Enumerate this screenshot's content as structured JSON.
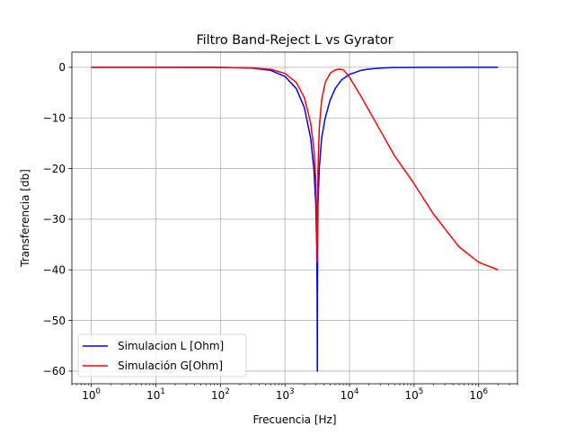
{
  "chart_data": {
    "type": "line",
    "title": "Filtro Band-Reject L vs Gyrator",
    "xlabel": "Frecuencia [Hz]",
    "ylabel": "Transferencia [db]",
    "xscale": "log",
    "xlim": [
      0.5,
      4000000
    ],
    "ylim": [
      -62.5,
      3
    ],
    "grid": true,
    "legend_position": "lower-left",
    "x_ticks": [
      {
        "value": 1,
        "base": "10",
        "exp": "0"
      },
      {
        "value": 10,
        "base": "10",
        "exp": "1"
      },
      {
        "value": 100,
        "base": "10",
        "exp": "2"
      },
      {
        "value": 1000,
        "base": "10",
        "exp": "3"
      },
      {
        "value": 10000,
        "base": "10",
        "exp": "4"
      },
      {
        "value": 100000,
        "base": "10",
        "exp": "5"
      },
      {
        "value": 1000000,
        "base": "10",
        "exp": "6"
      }
    ],
    "y_ticks": [
      {
        "value": 0,
        "label": "0"
      },
      {
        "value": -10,
        "label": "−10"
      },
      {
        "value": -20,
        "label": "−20"
      },
      {
        "value": -30,
        "label": "−30"
      },
      {
        "value": -40,
        "label": "−40"
      },
      {
        "value": -50,
        "label": "−50"
      },
      {
        "value": -60,
        "label": "−60"
      }
    ],
    "series": [
      {
        "name": "Simulacion L [Ohm]",
        "color": "#0000ff",
        "x": [
          1,
          10,
          100,
          300,
          600,
          1000,
          1500,
          2000,
          2500,
          2800,
          3000,
          3100,
          3150,
          3170,
          3180,
          3190,
          3210,
          3250,
          3400,
          3700,
          4200,
          5000,
          6000,
          7500,
          10000,
          15000,
          20000,
          30000,
          50000,
          100000,
          1000000,
          2000000
        ],
        "y": [
          0,
          0,
          -0.02,
          -0.15,
          -0.6,
          -1.8,
          -4.2,
          -8.0,
          -14.0,
          -20.0,
          -27.0,
          -35.0,
          -45.0,
          -60.0,
          -60.0,
          -45.0,
          -35.0,
          -27.0,
          -20.0,
          -14.0,
          -10.0,
          -6.5,
          -4.2,
          -2.5,
          -1.4,
          -0.6,
          -0.35,
          -0.15,
          -0.05,
          -0.01,
          0,
          0
        ]
      },
      {
        "name": "Simulación G[Ohm]",
        "color": "#ff0000",
        "x": [
          1,
          10,
          100,
          300,
          600,
          1000,
          1500,
          2000,
          2500,
          2800,
          3000,
          3100,
          3150,
          3170,
          3180,
          3190,
          3210,
          3250,
          3400,
          3700,
          4200,
          5000,
          6000,
          7000,
          8000,
          9000,
          10000,
          15000,
          20000,
          30000,
          50000,
          100000,
          200000,
          500000,
          1000000,
          2000000
        ],
        "y": [
          0,
          0,
          -0.02,
          -0.1,
          -0.4,
          -1.2,
          -3.0,
          -6.0,
          -11.0,
          -16.0,
          -22.0,
          -30.0,
          -37.0,
          -38.5,
          -38.5,
          -36.0,
          -28.0,
          -20.0,
          -12.0,
          -6.5,
          -3.0,
          -1.2,
          -0.5,
          -0.35,
          -0.5,
          -1.2,
          -2.0,
          -5.7,
          -8.5,
          -12.5,
          -17.5,
          -23.0,
          -29.0,
          -35.5,
          -38.5,
          -40.0
        ]
      }
    ]
  }
}
